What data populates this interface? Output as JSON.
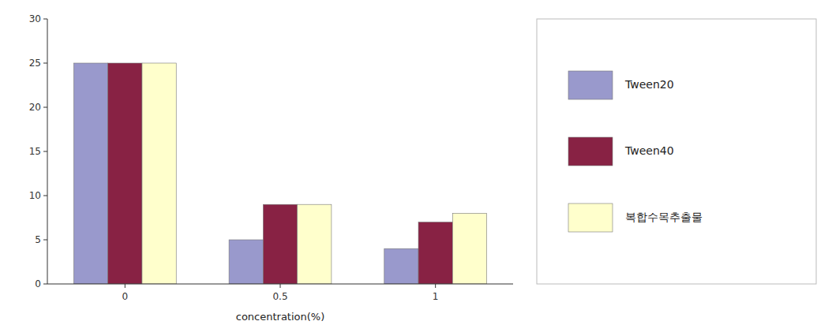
{
  "chart_data": {
    "type": "bar",
    "xlabel": "concentration(%)",
    "categories": [
      "0",
      "0.5",
      "1"
    ],
    "series": [
      {
        "name": "Tween20",
        "color": "#9999cc",
        "values": [
          25,
          5,
          4
        ]
      },
      {
        "name": "Tween40",
        "color": "#882244",
        "values": [
          25,
          9,
          7
        ]
      },
      {
        "name": "복합수목추출물",
        "color": "#ffffcc",
        "values": [
          25,
          9,
          8
        ]
      }
    ],
    "ylim": [
      0,
      30
    ],
    "yticks": [
      0,
      5,
      10,
      15,
      20,
      25,
      30
    ],
    "legend": "right",
    "grid": false
  }
}
